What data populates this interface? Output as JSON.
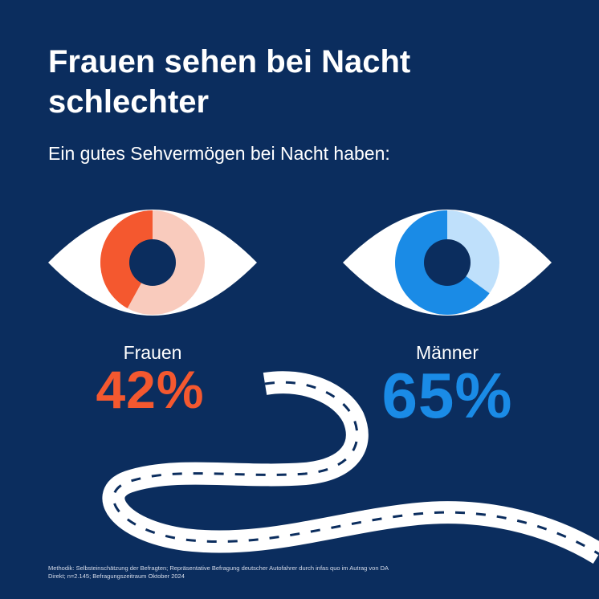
{
  "title": "Frauen sehen bei Nacht schlechter",
  "subtitle": "Ein gutes Sehvermögen bei Nacht haben:",
  "colors": {
    "background": "#0b2d5e",
    "frauen_dark": "#f4582f",
    "frauen_light": "#f9cbbd",
    "maenner_dark": "#1a8be6",
    "maenner_light": "#bfe0fb"
  },
  "chart_data": {
    "type": "pie",
    "categories": [
      "Frauen",
      "Männer"
    ],
    "values": [
      42,
      65
    ],
    "value_labels": [
      "42%",
      "65%"
    ],
    "unit": "%"
  },
  "icons": [
    "eye-icon",
    "road-icon"
  ],
  "footnote": "Methodik: Selbsteinschätzung der Befragten; Repräsentative Befragung deutscher Autofahrer durch infas quo im Autrag von DA Direkt; n=2.145; Befragungszeitraum Oktober 2024"
}
